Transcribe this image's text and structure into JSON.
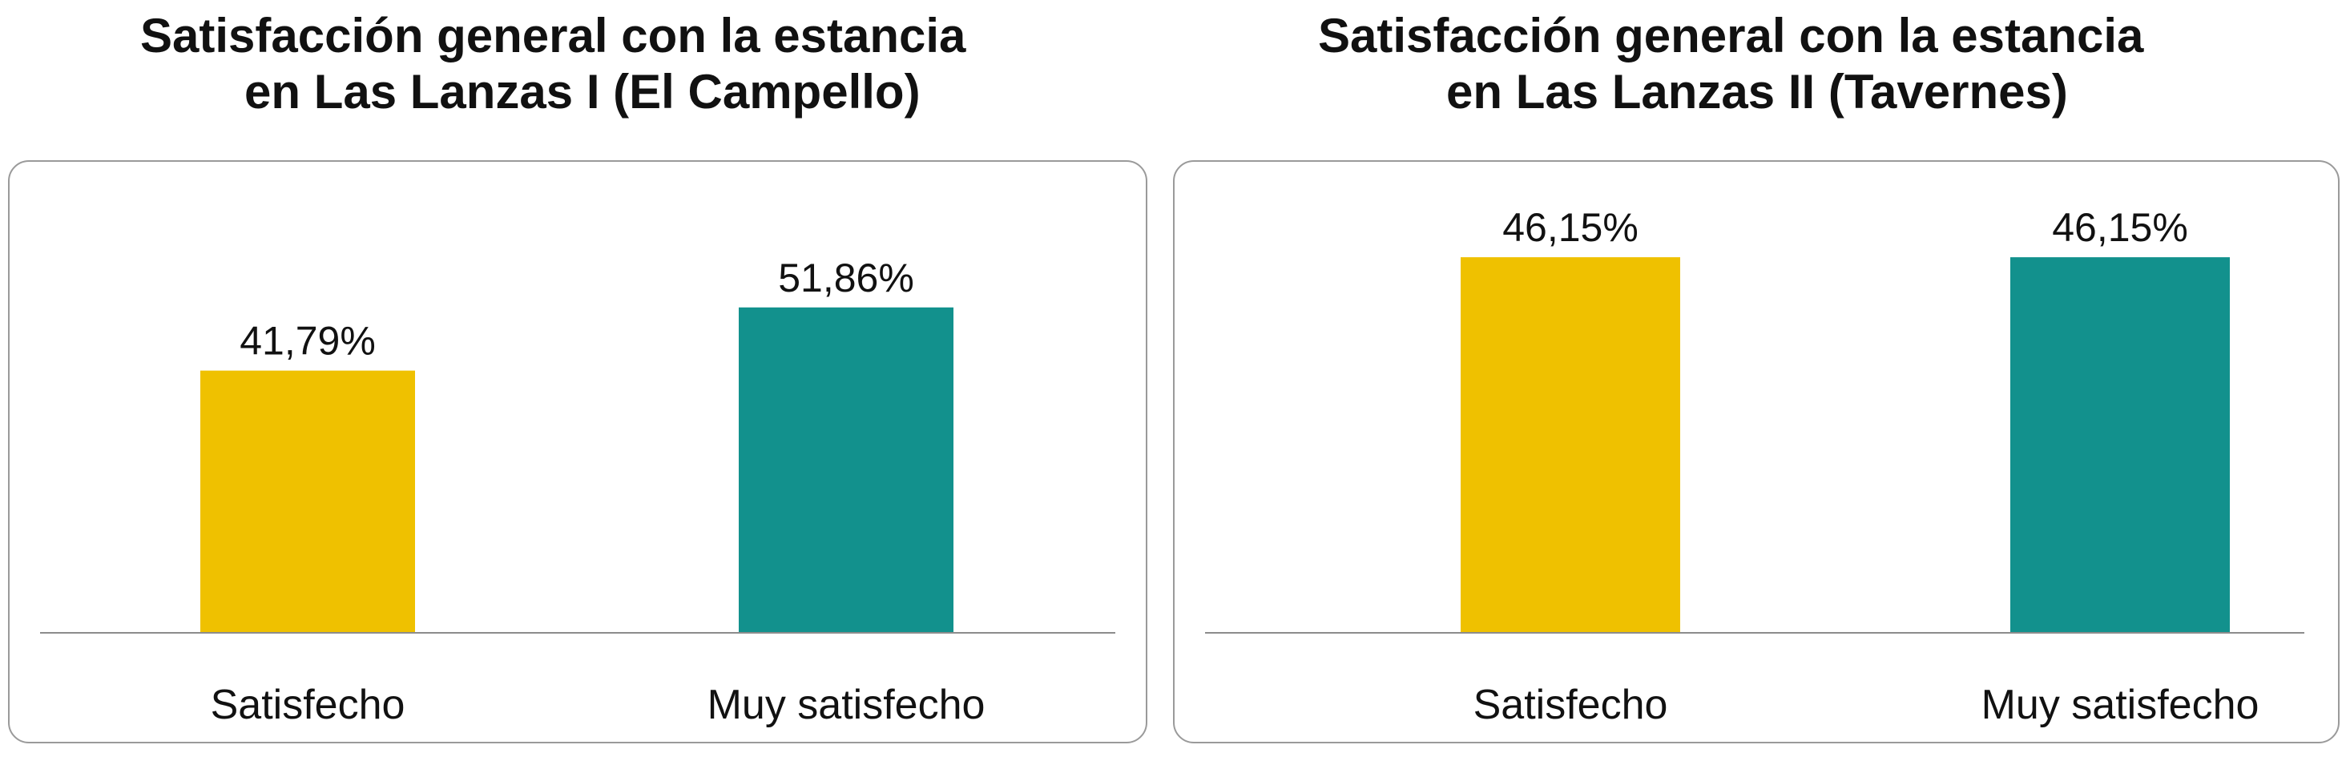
{
  "chart_data": [
    {
      "type": "bar",
      "title_lines": [
        "Satisfacción general con la estancia",
        "en Las Lanzas I (El Campello)"
      ],
      "categories": [
        "Satisfecho",
        "Muy satisfecho"
      ],
      "values": [
        41.79,
        51.86
      ],
      "data_labels": [
        "41,79%",
        "51,86%"
      ],
      "colors": [
        "#EFC100",
        "#12918D"
      ],
      "unit": "%",
      "ylim": [
        0,
        60
      ],
      "grid": false,
      "legend": "none"
    },
    {
      "type": "bar",
      "title_lines": [
        "Satisfacción general con la estancia",
        "en Las Lanzas II (Tavernes)"
      ],
      "categories": [
        "Satisfecho",
        "Muy satisfecho"
      ],
      "values": [
        46.15,
        46.15
      ],
      "data_labels": [
        "46,15%",
        "46,15%"
      ],
      "colors": [
        "#EFC100",
        "#12918D"
      ],
      "unit": "%",
      "ylim": [
        0,
        50
      ],
      "grid": false,
      "legend": "none"
    }
  ]
}
